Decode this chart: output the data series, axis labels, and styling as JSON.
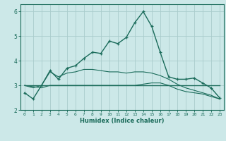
{
  "xlabel": "Humidex (Indice chaleur)",
  "ylabel": "",
  "xlim": [
    -0.5,
    23.5
  ],
  "ylim": [
    2,
    6.3
  ],
  "bg_color": "#cce8e8",
  "grid_color": "#aacccc",
  "line_color": "#1a6b5a",
  "x_ticks": [
    0,
    1,
    2,
    3,
    4,
    5,
    6,
    7,
    8,
    9,
    10,
    11,
    12,
    13,
    14,
    15,
    16,
    17,
    18,
    19,
    20,
    21,
    22,
    23
  ],
  "y_ticks": [
    2,
    3,
    4,
    5,
    6
  ],
  "series": [
    {
      "x": [
        0,
        1,
        2,
        3,
        4,
        5,
        6,
        7,
        8,
        9,
        10,
        11,
        12,
        13,
        14,
        15,
        16,
        17,
        18,
        19,
        20,
        21,
        22,
        23
      ],
      "y": [
        2.7,
        2.45,
        3.0,
        3.6,
        3.25,
        3.7,
        3.8,
        4.1,
        4.35,
        4.3,
        4.8,
        4.7,
        4.95,
        5.55,
        6.0,
        5.4,
        4.35,
        3.35,
        3.25,
        3.25,
        3.3,
        3.1,
        2.9,
        2.5
      ],
      "marker": true,
      "lw": 1.0
    },
    {
      "x": [
        0,
        1,
        2,
        3,
        4,
        5,
        6,
        7,
        8,
        9,
        10,
        11,
        12,
        13,
        14,
        15,
        16,
        17,
        18,
        19,
        20,
        21,
        22,
        23
      ],
      "y": [
        3.0,
        3.0,
        3.0,
        3.0,
        3.0,
        3.0,
        3.0,
        3.0,
        3.0,
        3.0,
        3.0,
        3.0,
        3.0,
        3.0,
        3.0,
        3.0,
        3.0,
        3.0,
        3.0,
        3.0,
        3.0,
        3.0,
        3.0,
        3.0
      ],
      "marker": false,
      "lw": 1.0
    },
    {
      "x": [
        0,
        1,
        2,
        3,
        4,
        5,
        6,
        7,
        8,
        9,
        10,
        11,
        12,
        13,
        14,
        15,
        16,
        17,
        18,
        19,
        20,
        21,
        22,
        23
      ],
      "y": [
        3.0,
        2.95,
        2.9,
        3.0,
        3.0,
        3.0,
        3.0,
        3.0,
        3.0,
        3.0,
        3.0,
        3.0,
        3.0,
        3.0,
        3.05,
        3.1,
        3.1,
        3.0,
        2.85,
        2.75,
        2.7,
        2.65,
        2.55,
        2.45
      ],
      "marker": false,
      "lw": 0.8
    },
    {
      "x": [
        0,
        1,
        2,
        3,
        4,
        5,
        6,
        7,
        8,
        9,
        10,
        11,
        12,
        13,
        14,
        15,
        16,
        17,
        18,
        19,
        20,
        21,
        22,
        23
      ],
      "y": [
        3.0,
        2.9,
        3.0,
        3.55,
        3.35,
        3.5,
        3.55,
        3.65,
        3.65,
        3.6,
        3.55,
        3.55,
        3.5,
        3.55,
        3.55,
        3.5,
        3.4,
        3.25,
        3.05,
        2.9,
        2.8,
        2.7,
        2.6,
        2.45
      ],
      "marker": false,
      "lw": 0.8
    }
  ]
}
